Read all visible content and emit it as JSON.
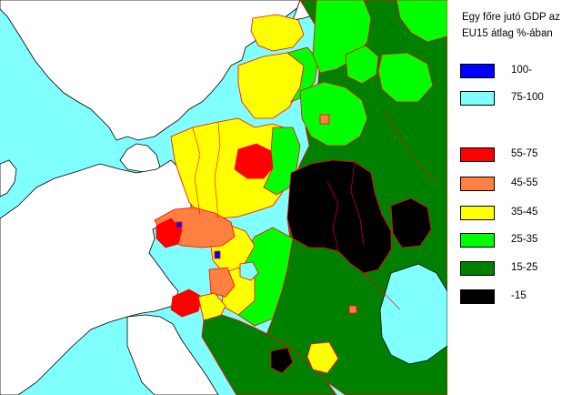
{
  "legend": {
    "title_line1": "Egy főre jutó GDP az",
    "title_line2": "EU15 átlag %-ában",
    "items": [
      {
        "label": "100-",
        "color": "#0000ff"
      },
      {
        "label": "75-100",
        "color": "#80ffff"
      },
      {
        "label": "55-75",
        "color": "#ff0000"
      },
      {
        "label": "45-55",
        "color": "#ff8040"
      },
      {
        "label": "35-45",
        "color": "#ffff00"
      },
      {
        "label": "25-35",
        "color": "#00ff00"
      },
      {
        "label": "15-25",
        "color": "#008000"
      },
      {
        "label": "-15",
        "color": "#000000"
      }
    ]
  },
  "map_colors": {
    "sea": "#80ffff",
    "outside_region": "#ffffff",
    "country_border": "#000000",
    "region_border": "#ff0000"
  }
}
